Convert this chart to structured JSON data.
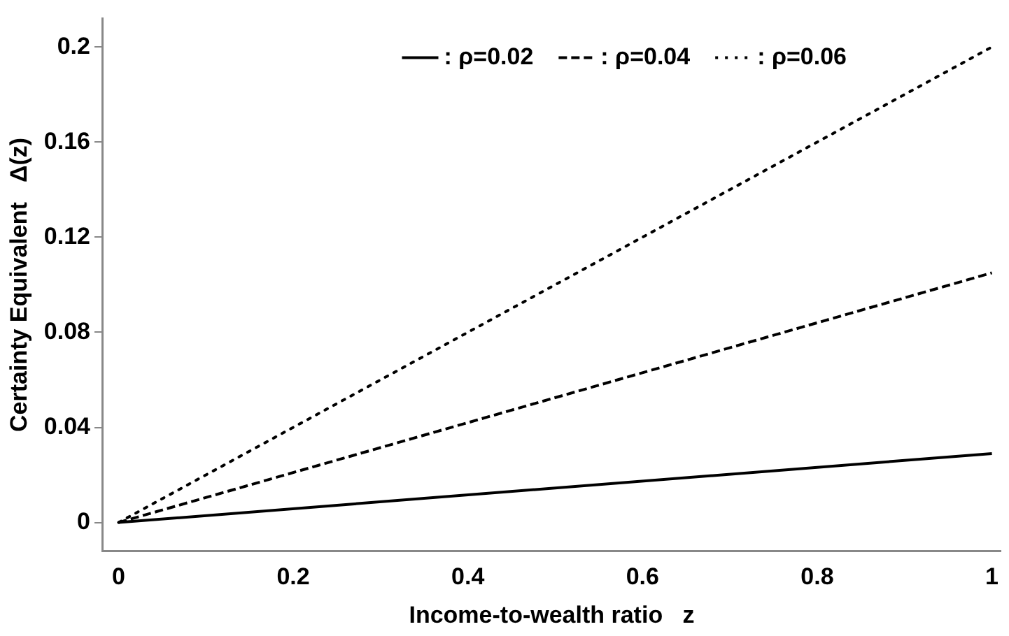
{
  "chart_data": {
    "type": "line",
    "xlabel": "Income-to-wealth ratio   z",
    "ylabel": "Certainty Equivalent   Δ(z)",
    "x": [
      0,
      1
    ],
    "series": [
      {
        "name": ": ρ=0.02",
        "color": "#000000",
        "values": [
          0,
          0.029
        ],
        "line_style": "solid"
      },
      {
        "name": ": ρ=0.04",
        "color": "#000000",
        "values": [
          0,
          0.105
        ],
        "line_style": "dashed"
      },
      {
        "name": ": ρ=0.06",
        "color": "#000000",
        "values": [
          0,
          0.2
        ],
        "line_style": "dotted"
      }
    ],
    "xlim": [
      -0.018,
      1.01
    ],
    "xticks": [
      0,
      0.2,
      0.4,
      0.6,
      0.8,
      1
    ],
    "ylim": [
      -0.012,
      0.212
    ],
    "yticks": [
      0,
      0.04,
      0.08,
      0.12,
      0.16,
      0.2
    ],
    "grid": false,
    "legend": "top right",
    "marker": "none"
  }
}
